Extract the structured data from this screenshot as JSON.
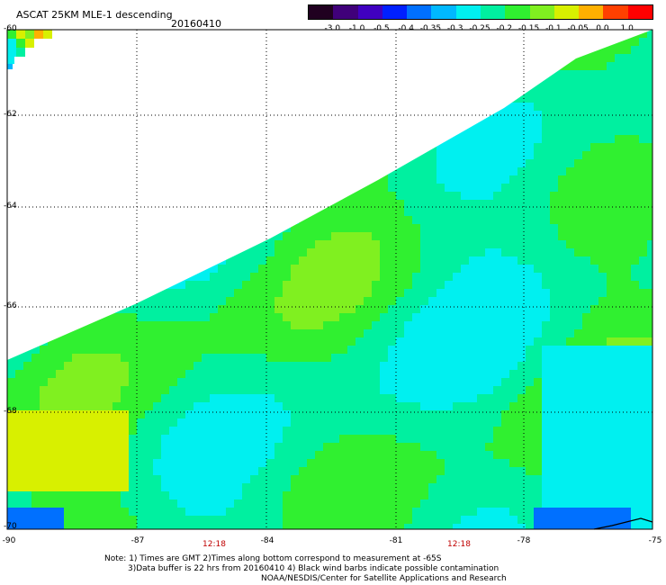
{
  "header": {
    "title": "ASCAT 25KM MLE-1 descending",
    "date": "20160410"
  },
  "colorbar": {
    "labels": [
      "-3.0",
      "-1.0",
      "-0.5",
      "-0.4",
      "-0.35",
      "-0.3",
      "-0.25",
      "-0.2",
      "-0.15",
      "-0.1",
      "-0.05",
      "0.0",
      "1.0"
    ],
    "colors": [
      "#200020",
      "#40007a",
      "#4000c0",
      "#0020ff",
      "#0070ff",
      "#00b8ff",
      "#00f0f0",
      "#00f0a0",
      "#30f030",
      "#80f020",
      "#d8f000",
      "#ffb000",
      "#ff4000",
      "#ff0000"
    ]
  },
  "axes": {
    "lat_labels": [
      "-60",
      "-62",
      "-64",
      "-66",
      "-68",
      "-70"
    ],
    "lon_labels": [
      "-90",
      "-87",
      "-84",
      "-81",
      "-78",
      "-75"
    ]
  },
  "time_labels": [
    "12:18",
    "12:18"
  ],
  "footer": {
    "line1": "Note: 1) Times are GMT 2)Times along bottom correspond to measurement at -65S",
    "line2": "3)Data buffer is 22 hrs from 20160410 4) Black wind barbs indicate possible contamination",
    "line3": "NOAA/NESDIS/Center for Satellite Applications and Research"
  },
  "map_colors": {
    "yellow": "#d8f000",
    "lime": "#80f020",
    "green": "#30f030",
    "sea": "#00f0a0",
    "cyan": "#00f0f0",
    "sky": "#00b8ff",
    "blue": "#0070ff",
    "orange": "#ffb000"
  }
}
